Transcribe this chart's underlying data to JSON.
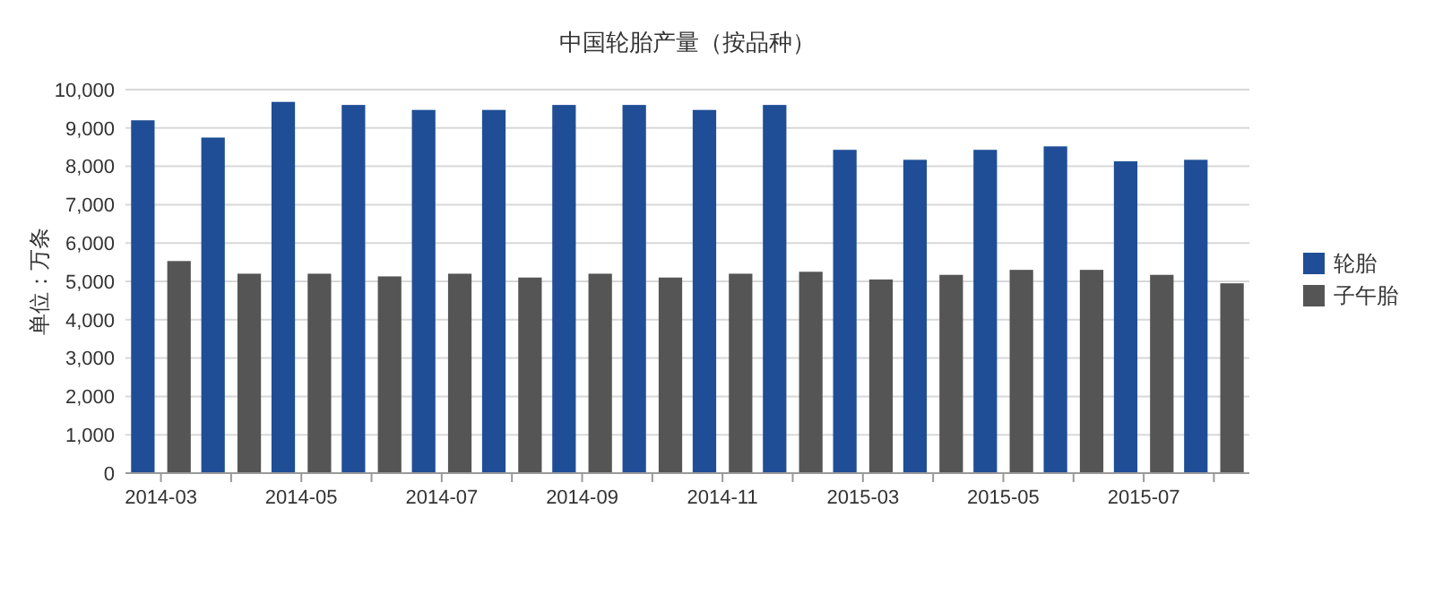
{
  "chart_data": {
    "type": "bar",
    "title": "中国轮胎产量（按品种）",
    "ylabel": "单位：万条",
    "categories": [
      "2014-03",
      null,
      "2014-05",
      null,
      "2014-07",
      null,
      "2014-09",
      null,
      "2014-11",
      null,
      "2015-03",
      null,
      "2015-05",
      null,
      "2015-07",
      null
    ],
    "series": [
      {
        "name": "轮胎",
        "color": "#1f4e96",
        "values": [
          9200,
          8750,
          9680,
          9600,
          9470,
          9470,
          9600,
          9600,
          9470,
          9600,
          8430,
          8170,
          8430,
          8520,
          8130,
          8170
        ]
      },
      {
        "name": "子午胎",
        "color": "#555555",
        "values": [
          5530,
          5200,
          5200,
          5130,
          5200,
          5100,
          5200,
          5100,
          5200,
          5250,
          5050,
          5170,
          5300,
          5300,
          5170,
          4950
        ]
      }
    ],
    "ylim": [
      0,
      10000
    ],
    "yticks": [
      {
        "value": 0,
        "label": "0"
      },
      {
        "value": 1000,
        "label": "1,000"
      },
      {
        "value": 2000,
        "label": "2,000"
      },
      {
        "value": 3000,
        "label": "3,000"
      },
      {
        "value": 4000,
        "label": "4,000"
      },
      {
        "value": 5000,
        "label": "5,000"
      },
      {
        "value": 6000,
        "label": "6,000"
      },
      {
        "value": 7000,
        "label": "7,000"
      },
      {
        "value": 8000,
        "label": "8,000"
      },
      {
        "value": 9000,
        "label": "9,000"
      },
      {
        "value": 10000,
        "label": "10,000"
      }
    ],
    "grid": "y",
    "legend": "right"
  }
}
